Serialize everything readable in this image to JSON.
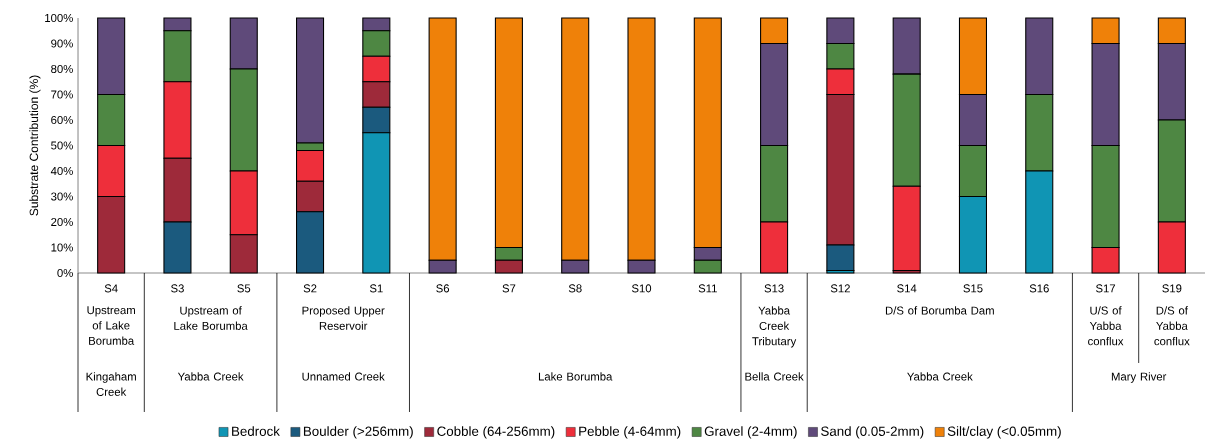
{
  "chart_data": {
    "type": "bar",
    "stacked": true,
    "ylabel": "Substrate Contribution (%)",
    "categories": [
      "S4",
      "S3",
      "S5",
      "S2",
      "S1",
      "S6",
      "S7",
      "S8",
      "S10",
      "S11",
      "S13",
      "S12",
      "S14",
      "S15",
      "S16",
      "S17",
      "S19"
    ],
    "series": [
      {
        "name": "Bedrock",
        "color": "#1095b4",
        "values": [
          0,
          0,
          0,
          0,
          55,
          0,
          0,
          0,
          0,
          0,
          0,
          1,
          0,
          30,
          40,
          0,
          0
        ]
      },
      {
        "name": "Boulder (>256mm)",
        "color": "#1b5a7e",
        "values": [
          0,
          20,
          0,
          24,
          10,
          0,
          0,
          0,
          0,
          0,
          0,
          10,
          0,
          0,
          0,
          0,
          0
        ]
      },
      {
        "name": "Cobble (64-256mm)",
        "color": "#9e2a3a",
        "values": [
          30,
          25,
          15,
          12,
          10,
          0,
          5,
          0,
          0,
          0,
          0,
          59,
          1,
          0,
          0,
          0,
          0
        ]
      },
      {
        "name": "Pebble (4-64mm)",
        "color": "#ee2f3b",
        "values": [
          20,
          30,
          25,
          12,
          10,
          0,
          0,
          0,
          0,
          0,
          20,
          10,
          33,
          0,
          0,
          10,
          20
        ]
      },
      {
        "name": "Gravel (2-4mm)",
        "color": "#4e8743",
        "values": [
          20,
          20,
          40,
          3,
          10,
          0,
          5,
          0,
          0,
          5,
          30,
          10,
          44,
          20,
          30,
          40,
          40
        ]
      },
      {
        "name": "Sand (0.05-2mm)",
        "color": "#5f4a7a",
        "values": [
          30,
          5,
          20,
          49,
          5,
          5,
          0,
          5,
          5,
          5,
          40,
          10,
          22,
          20,
          30,
          40,
          30
        ]
      },
      {
        "name": "Silt/clay (<0.05mm)",
        "color": "#ef8109",
        "values": [
          0,
          0,
          0,
          0,
          0,
          95,
          90,
          95,
          95,
          90,
          10,
          0,
          0,
          30,
          0,
          10,
          10
        ]
      }
    ],
    "ylim": [
      0,
      100
    ],
    "yticks": [
      {
        "value": 0,
        "label": "0%"
      },
      {
        "value": 10,
        "label": "10%"
      },
      {
        "value": 20,
        "label": "20%"
      },
      {
        "value": 30,
        "label": "30%"
      },
      {
        "value": 40,
        "label": "40%"
      },
      {
        "value": 50,
        "label": "50%"
      },
      {
        "value": 60,
        "label": "60%"
      },
      {
        "value": 70,
        "label": "70%"
      },
      {
        "value": 80,
        "label": "80%"
      },
      {
        "value": 90,
        "label": "90%"
      },
      {
        "value": 100,
        "label": "100%"
      }
    ],
    "legend": "bottom",
    "annotations": [
      "Upstream of Lake Borumba",
      "Upstream of Lake Borumba",
      "Proposed Upper Reservoir",
      "Yabba Creek Tributary",
      "D/S of Borumba Dam",
      "U/S of Yabba conflux",
      "D/S of Yabba conflux",
      "Kingaham Creek",
      "Yabba Creek",
      "Unnamed Creek",
      "Lake Borumba",
      "Bella Creek",
      "Yabba Creek",
      "Mary River"
    ]
  }
}
